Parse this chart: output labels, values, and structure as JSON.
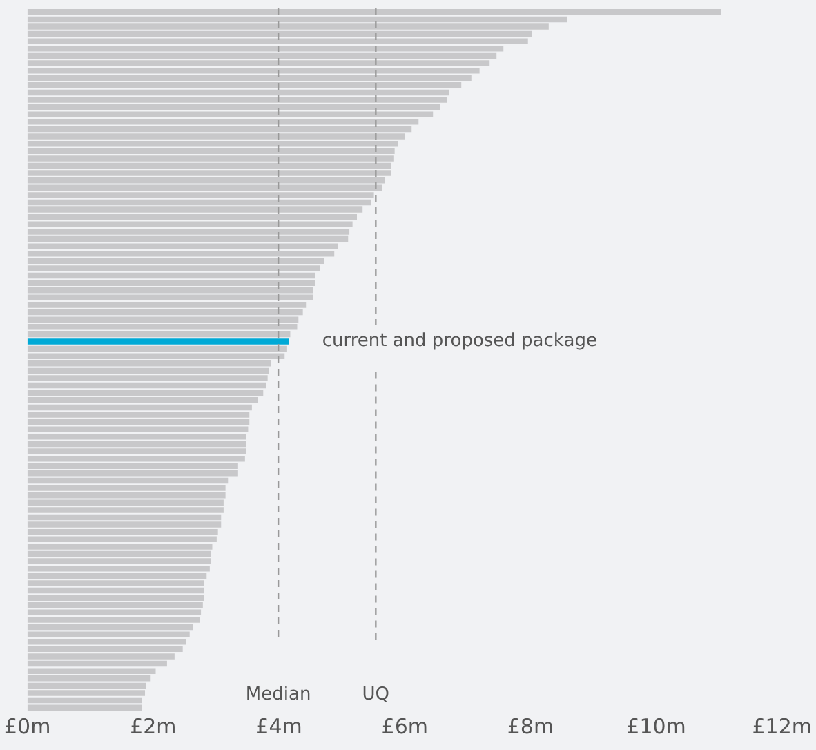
{
  "chart_data": {
    "type": "bar",
    "orientation": "horizontal",
    "categories": [
      null,
      null,
      null,
      null,
      null,
      null,
      null,
      null,
      null,
      null,
      null,
      null,
      null,
      null,
      null,
      null,
      null,
      null,
      null,
      null,
      null,
      null,
      null,
      null,
      null,
      null,
      null,
      null,
      null,
      null,
      null,
      null,
      null,
      null,
      null,
      null,
      null,
      null,
      null,
      null,
      null,
      null,
      null,
      null,
      null,
      null,
      null,
      null,
      null,
      null,
      null,
      null,
      null,
      null,
      null,
      null,
      null,
      null,
      null,
      null,
      null,
      null,
      null,
      null,
      null,
      null,
      null,
      null,
      null,
      null,
      null,
      null,
      null,
      null,
      null,
      null,
      null,
      null,
      null,
      null,
      null,
      null,
      null,
      null,
      null,
      null,
      null,
      null,
      null,
      null,
      null,
      null,
      null,
      null,
      null,
      null
    ],
    "values": [
      11.03,
      8.58,
      8.29,
      8.02,
      7.96,
      7.57,
      7.46,
      7.35,
      7.19,
      7.06,
      6.9,
      6.7,
      6.67,
      6.56,
      6.45,
      6.22,
      6.11,
      6.0,
      5.89,
      5.84,
      5.82,
      5.78,
      5.78,
      5.69,
      5.64,
      5.51,
      5.46,
      5.33,
      5.24,
      5.17,
      5.12,
      5.1,
      4.94,
      4.88,
      4.72,
      4.65,
      4.58,
      4.58,
      4.54,
      4.54,
      4.43,
      4.38,
      4.31,
      4.29,
      4.18,
      4.16,
      4.13,
      4.09,
      3.87,
      3.84,
      3.82,
      3.8,
      3.75,
      3.66,
      3.57,
      3.53,
      3.53,
      3.51,
      3.48,
      3.48,
      3.48,
      3.46,
      3.35,
      3.35,
      3.19,
      3.15,
      3.15,
      3.12,
      3.12,
      3.08,
      3.08,
      3.03,
      3.01,
      2.94,
      2.92,
      2.92,
      2.9,
      2.85,
      2.81,
      2.81,
      2.81,
      2.79,
      2.76,
      2.74,
      2.63,
      2.58,
      2.52,
      2.47,
      2.34,
      2.22,
      2.04,
      1.96,
      1.89,
      1.87,
      1.82,
      1.82
    ],
    "colors": [
      "#c8c8ca",
      "#c8c8ca",
      "#c8c8ca",
      "#c8c8ca",
      "#c8c8ca",
      "#c8c8ca",
      "#c8c8ca",
      "#c8c8ca",
      "#c8c8ca",
      "#c8c8ca",
      "#c8c8ca",
      "#c8c8ca",
      "#c8c8ca",
      "#c8c8ca",
      "#c8c8ca",
      "#c8c8ca",
      "#c8c8ca",
      "#c8c8ca",
      "#c8c8ca",
      "#c8c8ca",
      "#c8c8ca",
      "#c8c8ca",
      "#c8c8ca",
      "#c8c8ca",
      "#c8c8ca",
      "#c8c8ca",
      "#c8c8ca",
      "#c8c8ca",
      "#c8c8ca",
      "#c8c8ca",
      "#c8c8ca",
      "#c8c8ca",
      "#c8c8ca",
      "#c8c8ca",
      "#c8c8ca",
      "#c8c8ca",
      "#c8c8ca",
      "#c8c8ca",
      "#c8c8ca",
      "#c8c8ca",
      "#c8c8ca",
      "#c8c8ca",
      "#c8c8ca",
      "#c8c8ca",
      "#c8c8ca",
      "#00a9d6",
      "#c8c8ca",
      "#c8c8ca",
      "#c8c8ca",
      "#c8c8ca",
      "#c8c8ca",
      "#c8c8ca",
      "#c8c8ca",
      "#c8c8ca",
      "#c8c8ca",
      "#c8c8ca",
      "#c8c8ca",
      "#c8c8ca",
      "#c8c8ca",
      "#c8c8ca",
      "#c8c8ca",
      "#c8c8ca",
      "#c8c8ca",
      "#c8c8ca",
      "#c8c8ca",
      "#c8c8ca",
      "#c8c8ca",
      "#c8c8ca",
      "#c8c8ca",
      "#c8c8ca",
      "#c8c8ca",
      "#c8c8ca",
      "#c8c8ca",
      "#c8c8ca",
      "#c8c8ca",
      "#c8c8ca",
      "#c8c8ca",
      "#c8c8ca",
      "#c8c8ca",
      "#c8c8ca",
      "#c8c8ca",
      "#c8c8ca",
      "#c8c8ca",
      "#c8c8ca",
      "#c8c8ca",
      "#c8c8ca",
      "#c8c8ca",
      "#c8c8ca",
      "#c8c8ca",
      "#c8c8ca",
      "#c8c8ca",
      "#c8c8ca",
      "#c8c8ca",
      "#c8c8ca",
      "#c8c8ca",
      "#c8c8ca"
    ],
    "xlim": [
      0,
      12
    ],
    "xticks": [
      {
        "value": 0,
        "label": "£0m"
      },
      {
        "value": 2,
        "label": "£2m"
      },
      {
        "value": 4,
        "label": "£4m"
      },
      {
        "value": 6,
        "label": "£6m"
      },
      {
        "value": 8,
        "label": "£8m"
      },
      {
        "value": 10,
        "label": "£10m"
      },
      {
        "value": 12,
        "label": "£12m"
      }
    ],
    "ref_lines": [
      {
        "axis": "x",
        "value": 3.99,
        "label": "Median",
        "color": "#999999",
        "line_style": "dashed"
      },
      {
        "axis": "x",
        "value": 5.54,
        "label": "UQ",
        "color": "#999999",
        "line_style": "dashed"
      }
    ],
    "annotations": [
      "current and proposed package"
    ],
    "tick_labels": "x",
    "grid": false,
    "legend": false
  }
}
